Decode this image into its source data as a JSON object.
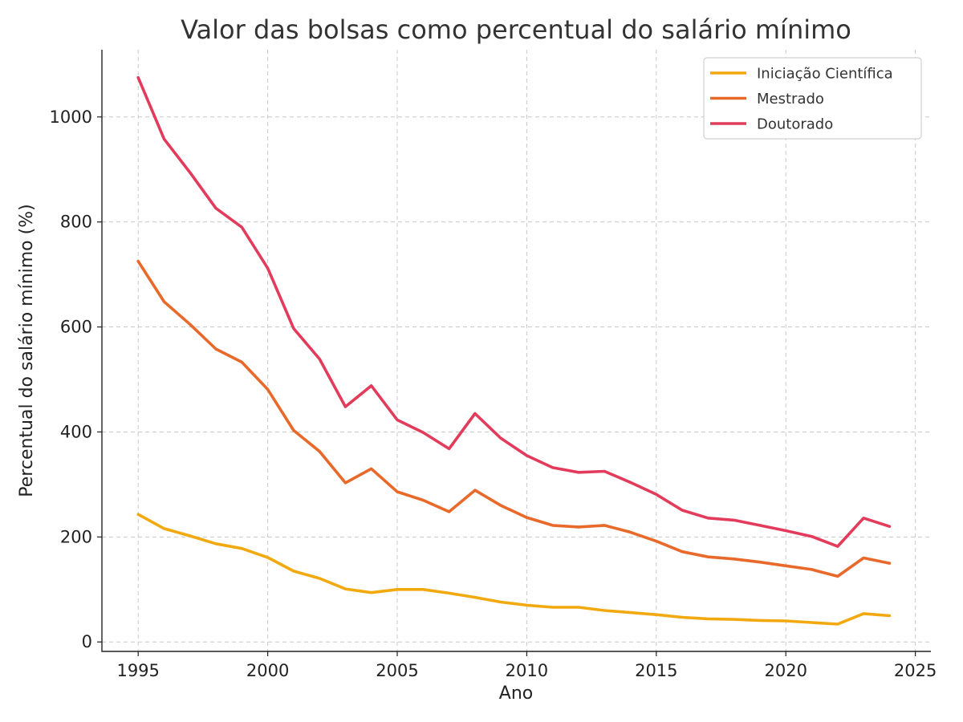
{
  "chart_data": {
    "type": "line",
    "title": "Valor das bolsas como percentual do salário mínimo",
    "xlabel": "Ano",
    "ylabel": "Percentual do salário mínimo (%)",
    "xlim": [
      1993.6,
      2025.6
    ],
    "ylim": [
      -18,
      1128
    ],
    "xticks": [
      1995,
      2000,
      2005,
      2010,
      2015,
      2020,
      2025
    ],
    "yticks": [
      0,
      200,
      400,
      600,
      800,
      1000
    ],
    "grid": true,
    "legend_position": "top-right",
    "x": [
      1995,
      1996,
      1997,
      1998,
      1999,
      2000,
      2001,
      2002,
      2003,
      2004,
      2005,
      2006,
      2007,
      2008,
      2009,
      2010,
      2011,
      2012,
      2013,
      2014,
      2015,
      2016,
      2017,
      2018,
      2019,
      2020,
      2021,
      2022,
      2023,
      2024
    ],
    "series": [
      {
        "name": "Iniciação Científica",
        "color": "#f2a90f",
        "values": [
          243,
          216,
          202,
          187,
          178,
          161,
          135,
          121,
          101,
          94,
          100,
          100,
          93,
          85,
          76,
          70,
          66,
          66,
          60,
          56,
          52,
          47,
          44,
          43,
          41,
          40,
          37,
          34,
          54,
          50
        ]
      },
      {
        "name": "Mestrado",
        "color": "#e8692a",
        "values": [
          725,
          648,
          605,
          558,
          533,
          481,
          403,
          363,
          303,
          330,
          286,
          270,
          248,
          289,
          260,
          237,
          222,
          219,
          222,
          209,
          192,
          172,
          162,
          158,
          152,
          145,
          138,
          125,
          160,
          150
        ]
      },
      {
        "name": "Doutorado",
        "color": "#e23b5b",
        "values": [
          1075,
          958,
          894,
          826,
          790,
          712,
          597,
          539,
          448,
          488,
          423,
          399,
          368,
          435,
          388,
          355,
          332,
          323,
          325,
          304,
          281,
          251,
          236,
          232,
          222,
          212,
          201,
          182,
          236,
          220
        ]
      }
    ]
  }
}
